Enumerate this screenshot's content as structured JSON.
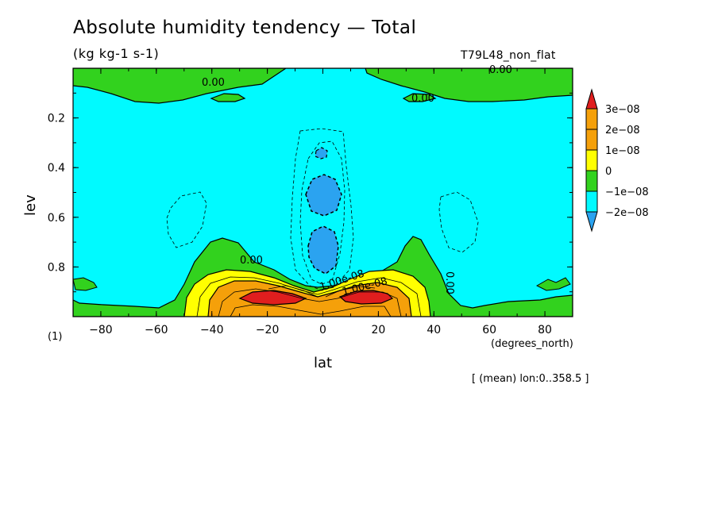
{
  "chart_data": {
    "type": "heatmap",
    "title": "Absolute humidity tendency — Total",
    "subtitle": "(kg kg-1 s-1)",
    "run_label": "T79L48_non_flat",
    "xlabel": "lat",
    "xunits": "(degrees_north)",
    "ylabel": "lev",
    "footnote": "(1)",
    "mean_note": "[ (mean) lon:0..358.5 ]",
    "x_range": [
      -90,
      90
    ],
    "y_range": [
      0,
      1
    ],
    "y_inverted": true,
    "x_ticks": [
      -80,
      -60,
      -40,
      -20,
      0,
      20,
      40,
      60,
      80
    ],
    "x_tick_labels": [
      "−80",
      "−60",
      "−40",
      "−20",
      "0",
      "20",
      "40",
      "60",
      "80"
    ],
    "y_ticks": [
      0.2,
      0.4,
      0.6,
      0.8
    ],
    "y_tick_labels": [
      "0.2",
      "0.4",
      "0.6",
      "0.8"
    ],
    "colorbar": {
      "labels": [
        "3e−08",
        "2e−08",
        "1e−08",
        "0",
        "−1e−08",
        "−2e−08"
      ],
      "level_values": [
        3e-08,
        2e-08,
        1e-08,
        0,
        -1e-08,
        -2e-08
      ],
      "colors": [
        "#e01e1e",
        "#f5a00a",
        "#ffff00",
        "#32d21e",
        "#00faff",
        "#2ba3f0"
      ],
      "bins": [
        ">3e-08",
        "2e-08..3e-08",
        "1e-08..2e-08",
        "0..1e-08",
        "-1e-08..0",
        "-2e-08..-1e-08",
        "<-2e-08"
      ],
      "bin_colors": [
        "#e01e1e",
        "#f5a00a",
        "#f5a00a",
        "#ffff00",
        "#32d21e",
        "#00faff",
        "#2ba3f0"
      ]
    },
    "contour_labels": [
      "0.00",
      "0.00",
      "0.00",
      "0.00",
      "0.00",
      "1.00e-08",
      "1.00e-08"
    ]
  }
}
